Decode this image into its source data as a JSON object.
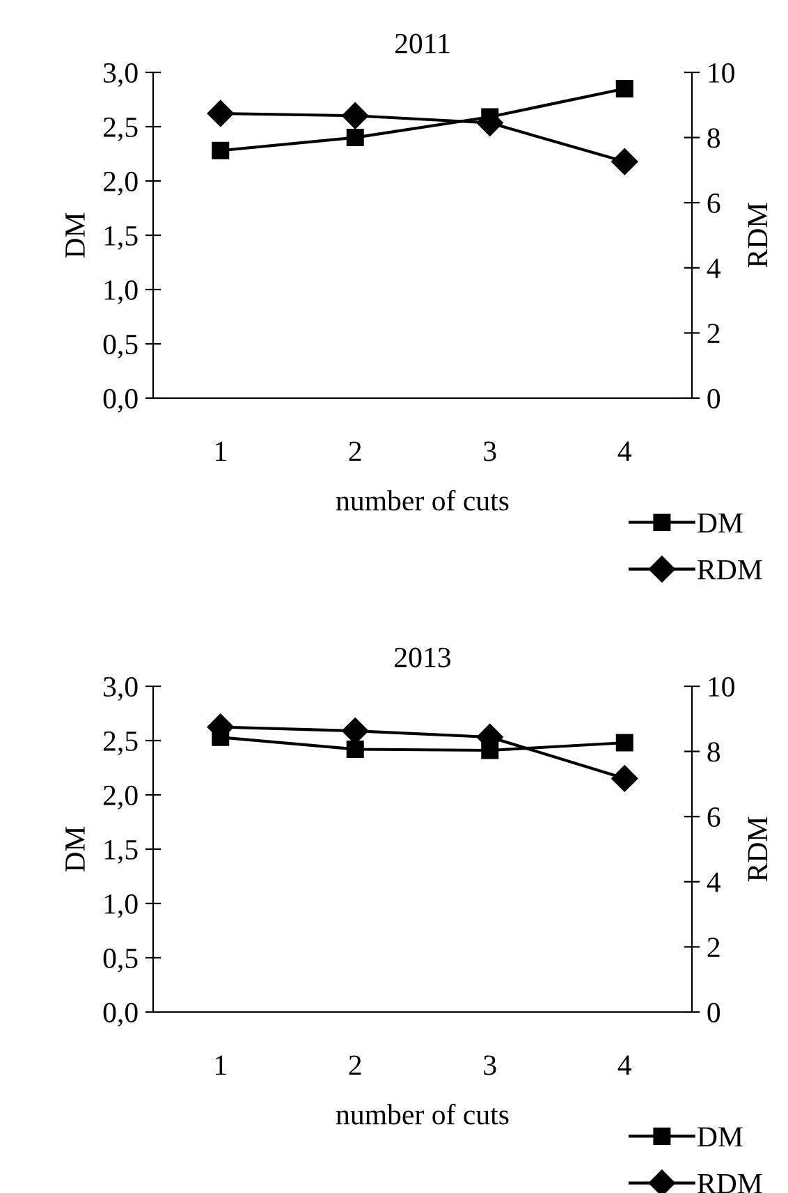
{
  "chart_data": [
    {
      "type": "line",
      "title": "2011",
      "xlabel": "number of cuts",
      "ylabel": "DM",
      "y2label": "RDM",
      "categories": [
        "1",
        "2",
        "3",
        "4"
      ],
      "series": [
        {
          "name": "DM",
          "color": "#000000",
          "marker": "square",
          "values": [
            2.28,
            2.4,
            2.59,
            2.85
          ]
        },
        {
          "name": "RDM",
          "color": "#000000",
          "marker": "diamond",
          "axis": "y2",
          "values": [
            8.74,
            8.67,
            8.45,
            7.26
          ]
        }
      ],
      "ylim": [
        0,
        3
      ],
      "yticks": [
        {
          "value": 0,
          "label": "0,0"
        },
        {
          "value": 0.5,
          "label": "0,5"
        },
        {
          "value": 1,
          "label": "1,0"
        },
        {
          "value": 1.5,
          "label": "1,5"
        },
        {
          "value": 2,
          "label": "2,0"
        },
        {
          "value": 2.5,
          "label": "2,5"
        },
        {
          "value": 3,
          "label": "3,0"
        }
      ],
      "y2lim": [
        0,
        10
      ],
      "y2ticks": [
        0,
        2,
        4,
        6,
        8,
        10
      ],
      "grid": false,
      "legend": "bottom right"
    },
    {
      "type": "line",
      "title": "2013",
      "xlabel": "number of cuts",
      "ylabel": "DM",
      "y2label": "RDM",
      "categories": [
        "1",
        "2",
        "3",
        "4"
      ],
      "series": [
        {
          "name": "DM",
          "color": "#000000",
          "marker": "square",
          "values": [
            2.53,
            2.42,
            2.41,
            2.48
          ]
        },
        {
          "name": "RDM",
          "color": "#000000",
          "marker": "diamond",
          "axis": "y2",
          "values": [
            8.75,
            8.63,
            8.44,
            7.17
          ]
        }
      ],
      "ylim": [
        0,
        3
      ],
      "yticks": [
        {
          "value": 0,
          "label": "0,0"
        },
        {
          "value": 0.5,
          "label": "0,5"
        },
        {
          "value": 1,
          "label": "1,0"
        },
        {
          "value": 1.5,
          "label": "1,5"
        },
        {
          "value": 2,
          "label": "2,0"
        },
        {
          "value": 2.5,
          "label": "2,5"
        },
        {
          "value": 3,
          "label": "3,0"
        }
      ],
      "y2lim": [
        0,
        10
      ],
      "y2ticks": [
        0,
        2,
        4,
        6,
        8,
        10
      ],
      "grid": false,
      "legend": "bottom right"
    }
  ]
}
